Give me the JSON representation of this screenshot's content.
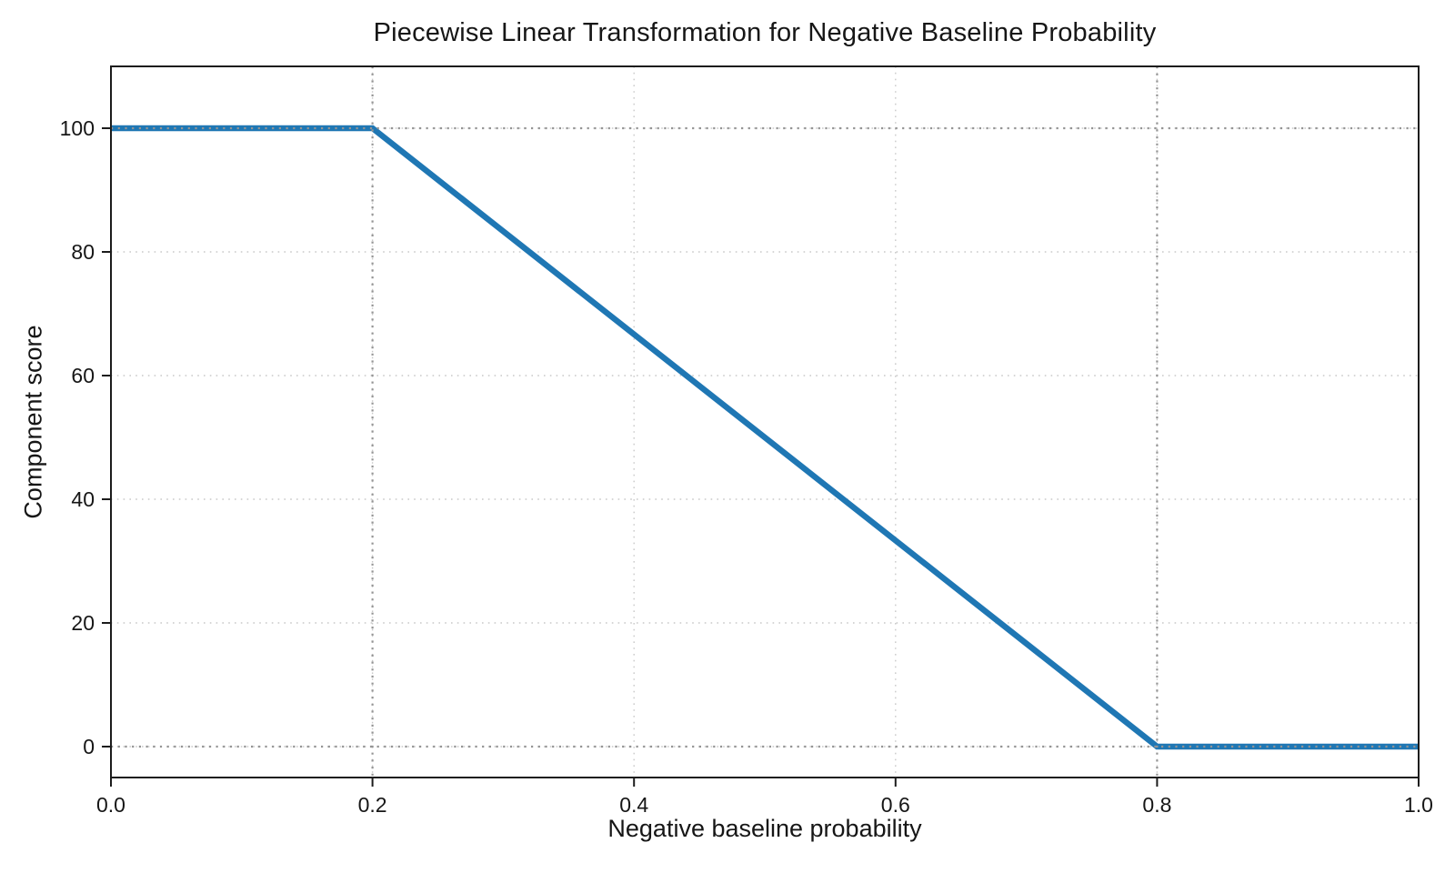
{
  "chart_data": {
    "type": "line",
    "title": "Piecewise Linear Transformation for Negative Baseline Probability",
    "xlabel": "Negative baseline probability",
    "ylabel": "Component score",
    "xlim": [
      0.0,
      1.0
    ],
    "ylim": [
      -5,
      110
    ],
    "x_tick_values": [
      0.0,
      0.2,
      0.4,
      0.6,
      0.8,
      1.0
    ],
    "x_tick_labels": [
      "0.0",
      "0.2",
      "0.4",
      "0.6",
      "0.8",
      "1.0"
    ],
    "y_tick_values": [
      0,
      20,
      40,
      60,
      80,
      100
    ],
    "y_tick_labels": [
      "0",
      "20",
      "40",
      "60",
      "80",
      "100"
    ],
    "grid": {
      "visible": true,
      "style": "dotted",
      "color": "#c9c9c9"
    },
    "reference_lines": {
      "x": [
        0.2,
        0.8
      ],
      "y": [
        100,
        0
      ],
      "color": "#949494",
      "style": "dotted"
    },
    "series": [
      {
        "name": "component-score",
        "color": "#1f77b4",
        "linewidth": 6.5,
        "points": [
          [
            0.0,
            100
          ],
          [
            0.2,
            100
          ],
          [
            0.8,
            0
          ],
          [
            1.0,
            0
          ]
        ]
      }
    ],
    "legend": {
      "visible": false
    }
  }
}
